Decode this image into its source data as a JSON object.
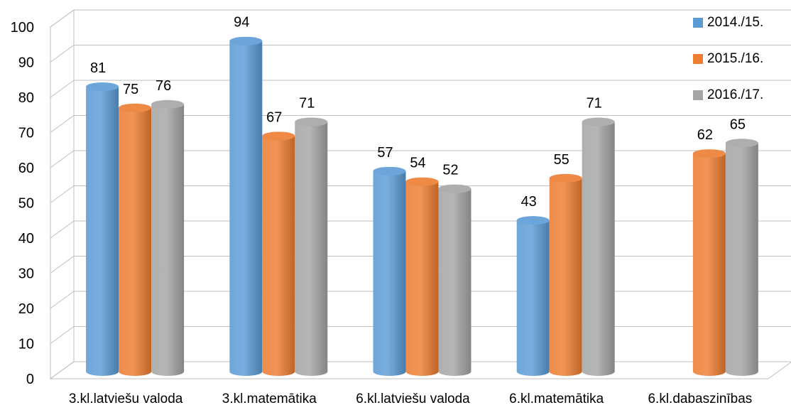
{
  "chart_data": {
    "type": "bar",
    "categories": [
      "3.kl.latviešu valoda",
      "3.kl.matemātika",
      "6.kl.latviešu valoda",
      "6.kl.matemātika",
      "6.kl.dabaszinības"
    ],
    "series": [
      {
        "name": "2014./15.",
        "color": "#5b9bd5",
        "values": [
          81,
          94,
          57,
          43,
          null
        ]
      },
      {
        "name": "2015./16.",
        "color": "#ed7d31",
        "values": [
          75,
          67,
          54,
          55,
          62
        ]
      },
      {
        "name": "2016./17.",
        "color": "#a5a5a5",
        "values": [
          76,
          71,
          52,
          71,
          65
        ]
      }
    ],
    "ylim": [
      0,
      100
    ],
    "yticks": [
      "0",
      "10",
      "20",
      "30",
      "40",
      "50",
      "60",
      "70",
      "80",
      "90",
      "100"
    ],
    "grid": true,
    "legend_position": "top-right",
    "style": "3d-cylinder"
  }
}
